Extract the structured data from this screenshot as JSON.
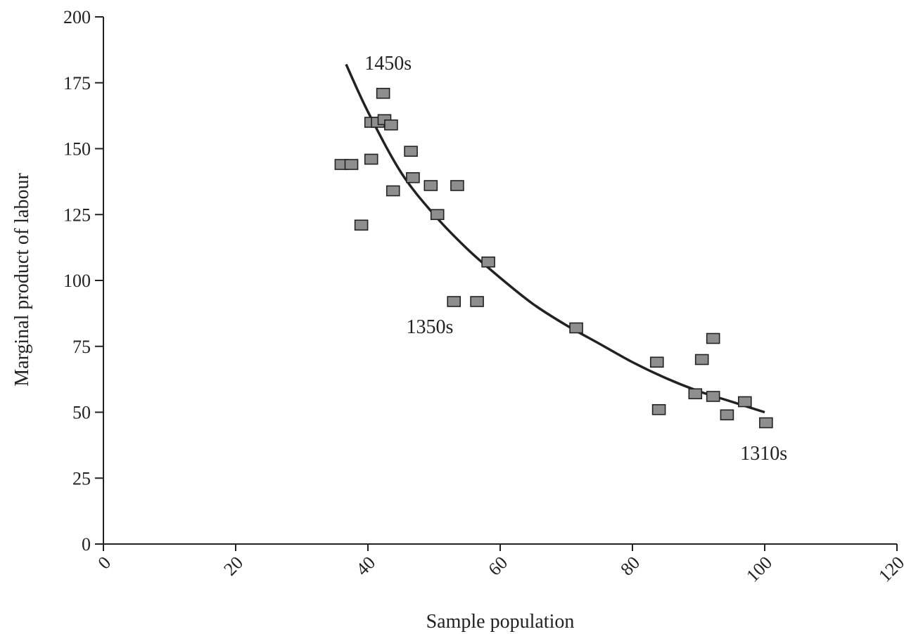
{
  "chart_data": {
    "type": "scatter",
    "xlabel": "Sample population",
    "ylabel": "Marginal product of labour",
    "xlim": [
      0,
      120
    ],
    "ylim": [
      0,
      200
    ],
    "x_ticks": [
      0,
      20,
      40,
      60,
      80,
      100,
      120
    ],
    "y_ticks": [
      0,
      25,
      50,
      75,
      100,
      125,
      150,
      175,
      200
    ],
    "grid": false,
    "points": [
      {
        "x": 36,
        "y": 144
      },
      {
        "x": 37.5,
        "y": 144
      },
      {
        "x": 39,
        "y": 121
      },
      {
        "x": 40.5,
        "y": 146
      },
      {
        "x": 40.5,
        "y": 160
      },
      {
        "x": 41.5,
        "y": 160
      },
      {
        "x": 42.5,
        "y": 161
      },
      {
        "x": 42.3,
        "y": 171
      },
      {
        "x": 43.5,
        "y": 159
      },
      {
        "x": 43.8,
        "y": 134
      },
      {
        "x": 46.5,
        "y": 149
      },
      {
        "x": 46.8,
        "y": 139
      },
      {
        "x": 49.5,
        "y": 136
      },
      {
        "x": 50.5,
        "y": 125
      },
      {
        "x": 53,
        "y": 92
      },
      {
        "x": 53.5,
        "y": 136
      },
      {
        "x": 56.5,
        "y": 92
      },
      {
        "x": 58.2,
        "y": 107
      },
      {
        "x": 71.5,
        "y": 82
      },
      {
        "x": 83.7,
        "y": 69
      },
      {
        "x": 84,
        "y": 51
      },
      {
        "x": 89.5,
        "y": 57
      },
      {
        "x": 90.5,
        "y": 70
      },
      {
        "x": 92.2,
        "y": 78
      },
      {
        "x": 92.2,
        "y": 56
      },
      {
        "x": 94.3,
        "y": 49
      },
      {
        "x": 97,
        "y": 54
      },
      {
        "x": 100.2,
        "y": 46
      }
    ],
    "trend_line": {
      "x": [
        36.7,
        40,
        45,
        50,
        55,
        60,
        65,
        70,
        75,
        80,
        85,
        90,
        95,
        100
      ],
      "y": [
        182,
        164,
        141,
        125,
        112,
        101,
        91,
        83,
        76,
        69,
        63,
        58,
        54,
        50
      ]
    },
    "annotations": [
      {
        "text": "1450s",
        "x": 39.5,
        "y": 180
      },
      {
        "text": "1350s",
        "x": 45.8,
        "y": 80
      },
      {
        "text": "1310s",
        "x": 96.3,
        "y": 32
      }
    ]
  },
  "colors": {
    "marker_fill": "#8e8e8e",
    "marker_stroke": "#222222",
    "line": "#222222",
    "axis": "#222222"
  }
}
